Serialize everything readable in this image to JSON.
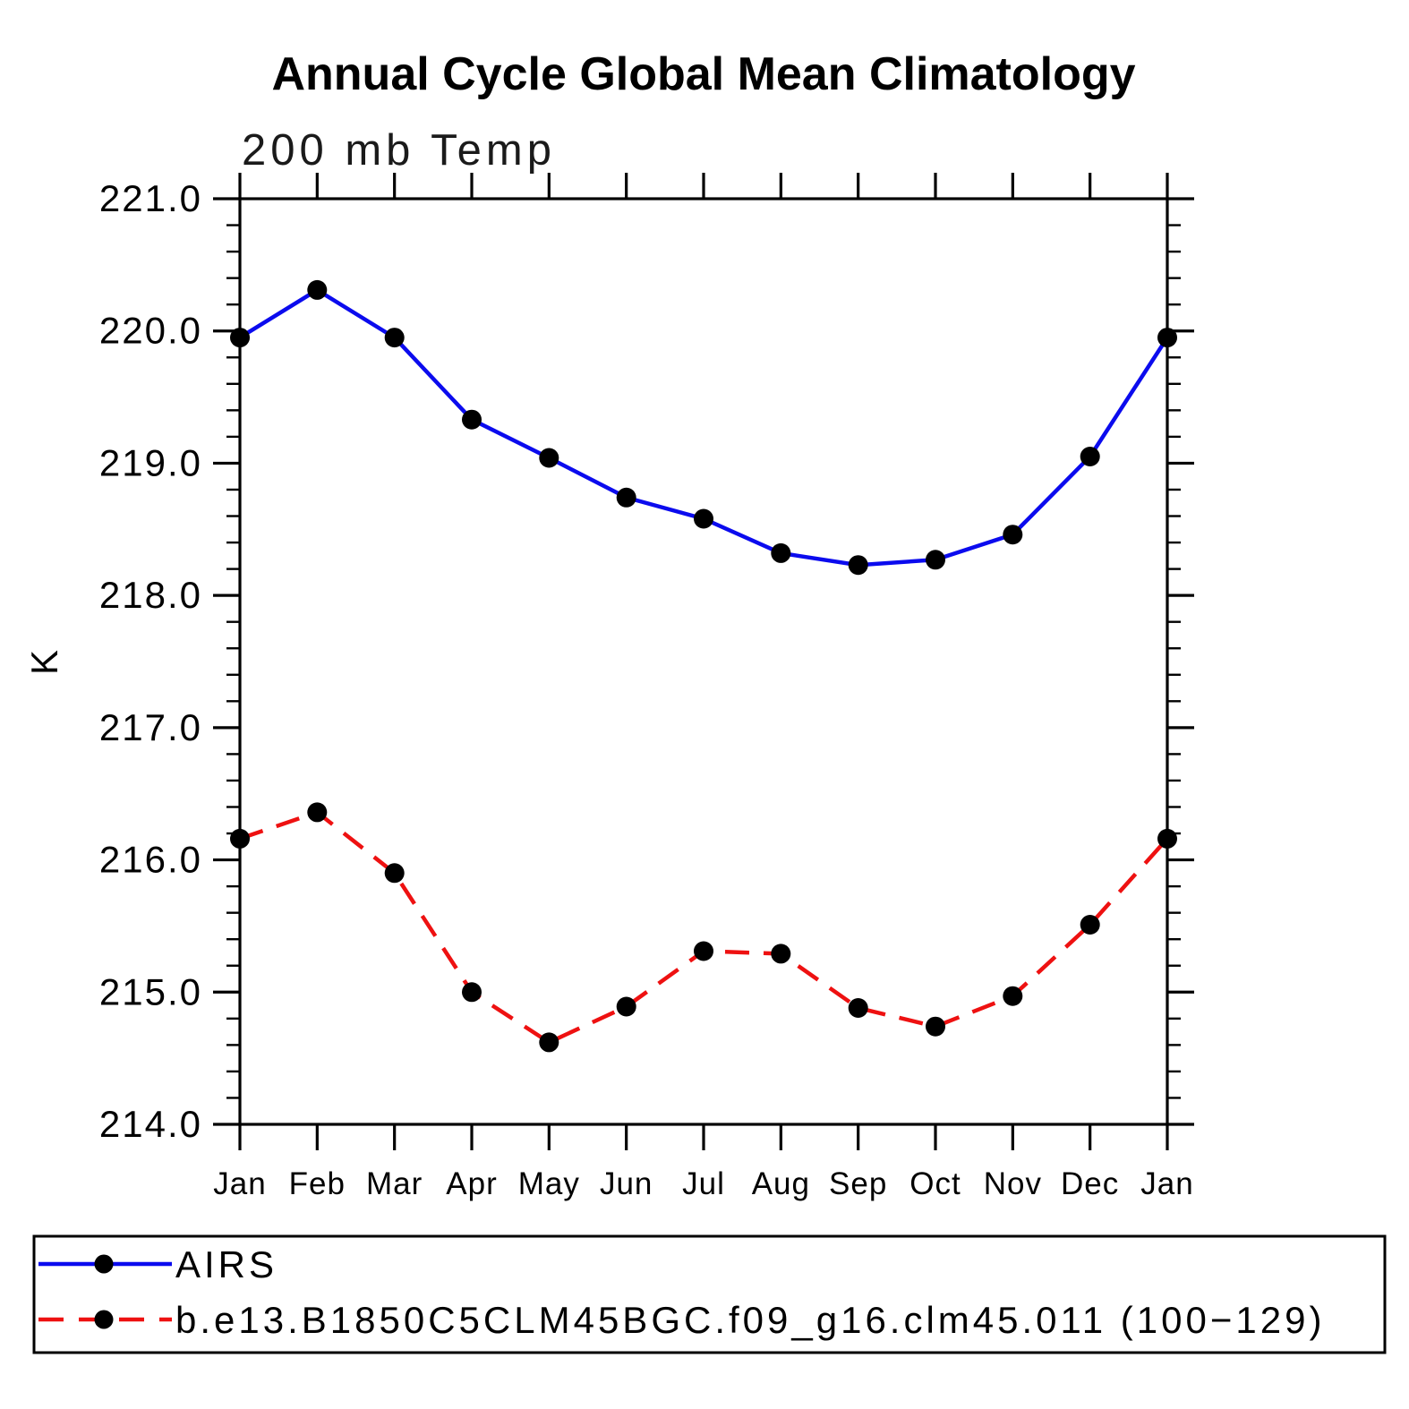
{
  "page": {
    "background_color": "#ffffff"
  },
  "chart_data": {
    "type": "line",
    "title": "Annual Cycle Global Mean Climatology",
    "subtitle": "200 mb Temp",
    "xlabel": "",
    "ylabel": "K",
    "ylim": [
      214.0,
      221.0
    ],
    "ytick_major_interval": 1.0,
    "ytick_minor_interval": 0.2,
    "ytick_labels": [
      "221.0",
      "220.0",
      "219.0",
      "218.0",
      "217.0",
      "216.0",
      "215.0",
      "214.0"
    ],
    "categories": [
      "Jan",
      "Feb",
      "Mar",
      "Apr",
      "May",
      "Jun",
      "Jul",
      "Aug",
      "Sep",
      "Oct",
      "Nov",
      "Dec",
      "Jan"
    ],
    "grid": false,
    "legend_position": "bottom-box",
    "axis_color": "#000000",
    "marker_color": "#000000",
    "series": [
      {
        "name": "AIRS",
        "color": "#0b0bee",
        "line_style": "solid",
        "marker": "circle",
        "values": [
          219.95,
          220.31,
          219.95,
          219.33,
          219.04,
          218.74,
          218.58,
          218.32,
          218.23,
          218.27,
          218.46,
          219.05,
          219.95
        ]
      },
      {
        "name": "b.e13.B1850C5CLM45BGC.f09_g16.clm45.011 (100−129)",
        "color": "#ee1111",
        "line_style": "dashed",
        "marker": "circle",
        "values": [
          216.16,
          216.36,
          215.9,
          215.0,
          214.62,
          214.89,
          215.31,
          215.29,
          214.88,
          214.74,
          214.97,
          215.51,
          216.16
        ]
      }
    ]
  }
}
